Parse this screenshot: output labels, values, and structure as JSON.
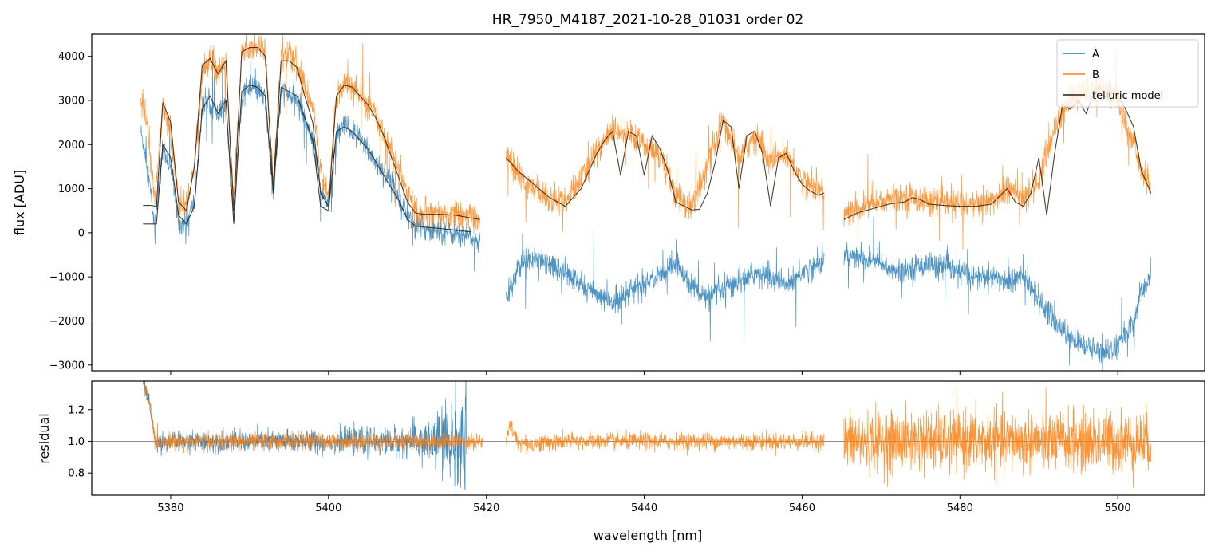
{
  "chart_data": [
    {
      "type": "line",
      "panel": "main",
      "title": "HR_7950_M4187_2021-10-28_01031  order 02",
      "xlabel": "",
      "ylabel": "flux [ADU]",
      "xlim": [
        5370,
        5511
      ],
      "ylim": [
        -3130,
        4500
      ],
      "x_ticks": [
        5380,
        5400,
        5420,
        5440,
        5460,
        5480,
        5500
      ],
      "y_ticks": [
        -3000,
        -2000,
        -1000,
        0,
        1000,
        2000,
        3000,
        4000
      ],
      "y_tick_labels": [
        "−3000",
        "−2000",
        "−1000",
        "0",
        "1000",
        "2000",
        "3000",
        "4000"
      ],
      "grid": false,
      "legend_position": "top-right",
      "series": [
        {
          "name": "A",
          "color": "#1f77b4",
          "noise": 260,
          "segments": [
            {
              "x": [
                5376.2,
                5377,
                5378,
                5379,
                5380,
                5381,
                5382,
                5383,
                5384,
                5385,
                5386,
                5387,
                5388,
                5389,
                5390,
                5391,
                5392,
                5393,
                5394,
                5395,
                5396,
                5397,
                5398,
                5399,
                5400,
                5401,
                5402,
                5403,
                5404,
                5405,
                5406,
                5407,
                5408,
                5409,
                5410,
                5411,
                5412,
                5414,
                5416,
                5418,
                5419.2
              ],
              "y": [
                2300,
                1600,
                100,
                1900,
                1500,
                200,
                200,
                700,
                2800,
                3000,
                2600,
                2900,
                300,
                3100,
                3300,
                3200,
                3000,
                800,
                3200,
                3100,
                3000,
                2600,
                2200,
                1000,
                600,
                2200,
                2400,
                2300,
                2100,
                1900,
                1600,
                1400,
                1100,
                800,
                400,
                150,
                100,
                50,
                0,
                -100,
                -300
              ]
            },
            {
              "x": [
                5422.5,
                5424,
                5426,
                5428,
                5430,
                5432,
                5434,
                5436,
                5438,
                5440,
                5442,
                5444,
                5446,
                5448,
                5450,
                5452,
                5454,
                5456,
                5458,
                5460,
                5462,
                5462.8
              ],
              "y": [
                -1500,
                -800,
                -500,
                -700,
                -900,
                -1200,
                -1400,
                -1600,
                -1300,
                -1200,
                -900,
                -700,
                -1200,
                -1500,
                -1300,
                -1100,
                -900,
                -1000,
                -1200,
                -900,
                -700,
                -600
              ]
            },
            {
              "x": [
                5465.3,
                5468,
                5470,
                5472,
                5474,
                5476,
                5478,
                5480,
                5482,
                5484,
                5486,
                5488,
                5490,
                5492,
                5494,
                5496,
                5498,
                5500,
                5502,
                5503,
                5504.2
              ],
              "y": [
                -500,
                -600,
                -700,
                -900,
                -800,
                -700,
                -800,
                -900,
                -1000,
                -1000,
                -1100,
                -1000,
                -1500,
                -2000,
                -2400,
                -2600,
                -2700,
                -2600,
                -2000,
                -1400,
                -900
              ]
            }
          ]
        },
        {
          "name": "B",
          "color": "#ff7f0e",
          "noise": 300,
          "segments": [
            {
              "x": [
                5376.2,
                5377,
                5378,
                5379,
                5380,
                5381,
                5382,
                5383,
                5384,
                5385,
                5386,
                5387,
                5388,
                5389,
                5390,
                5391,
                5392,
                5393,
                5394,
                5395,
                5396,
                5397,
                5398,
                5399,
                5400,
                5401,
                5402,
                5403,
                5404,
                5405,
                5406,
                5407,
                5408,
                5409,
                5410,
                5411,
                5412,
                5414,
                5416,
                5418,
                5419.2
              ],
              "y": [
                3000,
                2500,
                700,
                2950,
                2300,
                600,
                600,
                1500,
                3600,
                4000,
                3600,
                3900,
                700,
                4100,
                4250,
                4200,
                4100,
                1200,
                4000,
                4000,
                3800,
                3300,
                2900,
                1400,
                800,
                3000,
                3400,
                3300,
                3100,
                2900,
                2600,
                2300,
                1800,
                1400,
                900,
                500,
                400,
                400,
                400,
                350,
                300
              ]
            },
            {
              "x": [
                5422.5,
                5424,
                5426,
                5428,
                5430,
                5432,
                5434,
                5436,
                5438,
                5440,
                5442,
                5444,
                5446,
                5448,
                5450,
                5452,
                5454,
                5456,
                5458,
                5460,
                5462,
                5462.8
              ],
              "y": [
                1800,
                1300,
                1000,
                800,
                700,
                1200,
                1900,
                2300,
                2200,
                2000,
                1800,
                800,
                600,
                1500,
                2500,
                1700,
                2200,
                1600,
                1800,
                1200,
                1000,
                900
              ]
            },
            {
              "x": [
                5465.3,
                5468,
                5470,
                5472,
                5474,
                5476,
                5478,
                5480,
                5482,
                5484,
                5486,
                5488,
                5490,
                5492,
                5494,
                5496,
                5498,
                5500,
                5502,
                5503,
                5504.2
              ],
              "y": [
                400,
                600,
                700,
                800,
                800,
                700,
                650,
                650,
                650,
                700,
                1000,
                800,
                1200,
                2400,
                3000,
                3200,
                3300,
                3000,
                2000,
                1400,
                1000
              ]
            }
          ]
        },
        {
          "name": "telluric model",
          "color": "#2b1d12",
          "noise": 0,
          "segments": [
            {
              "x": [
                5376.5,
                5377.5,
                5378.2,
                5379,
                5380,
                5381,
                5382,
                5383,
                5384,
                5385,
                5386,
                5387,
                5388,
                5389,
                5390,
                5391,
                5392,
                5393,
                5394,
                5395,
                5396,
                5397,
                5398,
                5399,
                5400,
                5401,
                5402,
                5403,
                5404,
                5405,
                5406,
                5407,
                5408,
                5409,
                5410,
                5411,
                5412,
                5414,
                5416,
                5418
              ],
              "y": [
                200,
                200,
                200,
                2000,
                1700,
                400,
                200,
                600,
                2800,
                3100,
                2700,
                3000,
                200,
                3200,
                3350,
                3300,
                3100,
                900,
                3300,
                3200,
                3100,
                2600,
                2100,
                600,
                500,
                2300,
                2400,
                2300,
                2100,
                1900,
                1600,
                1300,
                1000,
                700,
                300,
                150,
                130,
                100,
                60,
                20
              ]
            },
            {
              "x": [
                5376.5,
                5377.5,
                5378.2,
                5379,
                5380,
                5381,
                5382,
                5383,
                5384,
                5385,
                5386,
                5387,
                5388,
                5389,
                5390,
                5391,
                5392,
                5393,
                5394,
                5395,
                5396,
                5397,
                5398,
                5399,
                5400,
                5401,
                5402,
                5403,
                5404,
                5405,
                5406,
                5407,
                5408,
                5409,
                5410,
                5411,
                5412,
                5414,
                5416,
                5419.2
              ],
              "y": [
                620,
                620,
                600,
                2950,
                2500,
                700,
                500,
                1500,
                3800,
                3950,
                3600,
                3900,
                500,
                4100,
                4200,
                4200,
                4000,
                1000,
                3900,
                3900,
                3750,
                3100,
                2500,
                900,
                600,
                3100,
                3350,
                3300,
                3100,
                2900,
                2600,
                2200,
                1700,
                1200,
                700,
                450,
                420,
                420,
                400,
                300
              ]
            },
            {
              "x": [
                5422.5,
                5424,
                5426,
                5428,
                5430,
                5432,
                5434,
                5435,
                5436,
                5437,
                5438,
                5439,
                5440,
                5441,
                5442,
                5443,
                5444,
                5446,
                5447,
                5448,
                5449,
                5450,
                5451,
                5452,
                5453,
                5454,
                5455,
                5456,
                5457,
                5458,
                5459,
                5460,
                5461,
                5462,
                5462.8
              ],
              "y": [
                1700,
                1400,
                1100,
                800,
                600,
                1000,
                1800,
                2100,
                2300,
                1300,
                2300,
                2200,
                1300,
                2200,
                1900,
                1400,
                700,
                520,
                530,
                900,
                1600,
                2550,
                2400,
                1000,
                2200,
                2300,
                1800,
                600,
                1700,
                1800,
                1400,
                1100,
                950,
                850,
                900
              ]
            },
            {
              "x": [
                5465.3,
                5467,
                5469,
                5471,
                5473,
                5474,
                5475,
                5476,
                5478,
                5480,
                5482,
                5484,
                5486,
                5487,
                5488,
                5489,
                5490,
                5491,
                5492,
                5493,
                5494,
                5495,
                5496,
                5497,
                5498,
                5499,
                5500,
                5501,
                5502,
                5503,
                5504.2
              ],
              "y": [
                300,
                450,
                550,
                650,
                700,
                800,
                750,
                650,
                620,
                600,
                600,
                650,
                1000,
                700,
                600,
                900,
                1700,
                400,
                1800,
                2900,
                2800,
                3000,
                2700,
                3200,
                3000,
                3200,
                3100,
                2800,
                2400,
                1400,
                900
              ]
            }
          ]
        }
      ]
    },
    {
      "type": "line",
      "panel": "residual",
      "title": "",
      "xlabel": "wavelength [nm]",
      "ylabel": "residual",
      "xlim": [
        5370,
        5511
      ],
      "ylim": [
        0.66,
        1.38
      ],
      "x_ticks": [
        5380,
        5400,
        5420,
        5440,
        5460,
        5480,
        5500
      ],
      "y_ticks": [
        0.8,
        1.0,
        1.2
      ],
      "y_tick_labels": [
        "0.8",
        "1.0",
        "1.2"
      ],
      "reference_line": 1.0,
      "series": [
        {
          "name": "A",
          "color": "#1f77b4",
          "noise_profile": [
            [
              5377.5,
              0.05
            ],
            [
              5400,
              0.06
            ],
            [
              5410,
              0.08
            ],
            [
              5414,
              0.16
            ],
            [
              5418,
              0.35
            ]
          ],
          "segments": [
            {
              "x": [
                5376.5,
                5377.5,
                5378,
                5390,
                5400,
                5410,
                5417.5
              ],
              "y": [
                1.38,
                1.2,
                1.0,
                1.0,
                1.0,
                1.0,
                1.0
              ]
            }
          ]
        },
        {
          "name": "B",
          "color": "#ff7f0e",
          "noise_profile": [
            [
              5377.5,
              0.04
            ],
            [
              5410,
              0.05
            ],
            [
              5418,
              0.06
            ],
            [
              5419.5,
              0.06
            ]
          ],
          "segments": [
            {
              "x": [
                5376.5,
                5377.5,
                5378,
                5390,
                5400,
                5410,
                5419.5
              ],
              "y": [
                1.38,
                1.2,
                1.0,
                1.0,
                1.0,
                1.0,
                1.0
              ]
            },
            {
              "x": [
                5422.5,
                5423,
                5424,
                5425,
                5430,
                5440,
                5450,
                5462.8
              ],
              "y": [
                1.0,
                1.1,
                1.0,
                0.98,
                1.0,
                1.0,
                1.0,
                1.0
              ]
            },
            {
              "x": [
                5465.3,
                5480,
                5490,
                5500,
                5504.2
              ],
              "y": [
                1.0,
                1.0,
                1.0,
                1.0,
                1.0
              ]
            }
          ],
          "segment_noise": [
            0.045,
            0.045,
            0.16
          ]
        }
      ]
    }
  ]
}
